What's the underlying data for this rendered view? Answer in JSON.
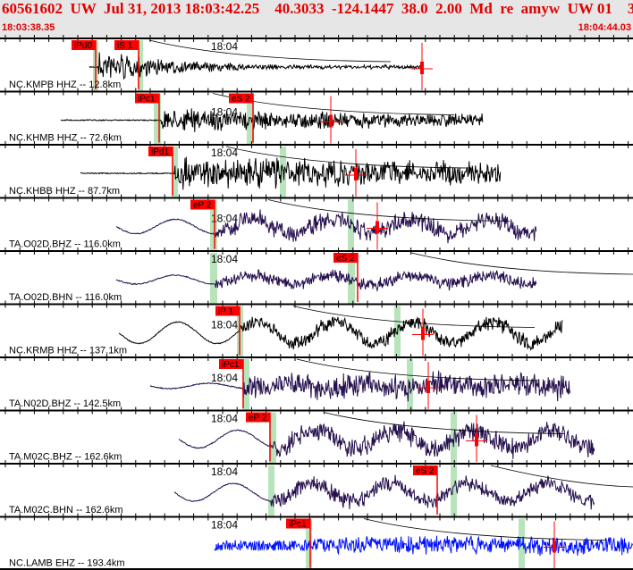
{
  "header": {
    "title": "60561602  UW  Jul 31, 2013 18:03:42.25    40.3033  -124.1447  38.0  2.00  Md  re  amyw  UW 01    3",
    "start_time": "18:03:38.35",
    "end_time": "18:04:44.03"
  },
  "time_label": "18:04",
  "colors": {
    "header_text": "#e00000",
    "pick": "#ff0000",
    "pick_window": "#b8e4bc",
    "trace_black": "#000000",
    "trace_purple": "#26104e",
    "trace_blue": "#0010ff"
  },
  "traces": [
    {
      "station": "NC.KMPB HHZ -- 12.8km",
      "color": "trace_black",
      "picks": [
        "iPd0",
        "iS 1"
      ]
    },
    {
      "station": "NC.KHMB HHZ -- 72.6km",
      "color": "trace_black",
      "picks": [
        "iPc1",
        "eS 2"
      ]
    },
    {
      "station": "NC.KHBB HHZ -- 87.7km",
      "color": "trace_black",
      "picks": [
        "iPd1"
      ]
    },
    {
      "station": "TA.O02D.BHZ -- 116.0km",
      "color": "trace_purple",
      "picks": [
        "eP 2"
      ]
    },
    {
      "station": "TA.O02D.BHN -- 116.0km",
      "color": "trace_purple",
      "picks": [
        "eS 2"
      ]
    },
    {
      "station": "NC.KRMB HHZ -- 137.1km",
      "color": "trace_black",
      "picks": [
        "iP 1"
      ]
    },
    {
      "station": "TA.N02D.BHZ -- 142.5km",
      "color": "trace_purple",
      "picks": [
        "iPc1"
      ]
    },
    {
      "station": "TA.M02C.BHZ -- 162.6km",
      "color": "trace_purple",
      "picks": [
        "eP 2"
      ]
    },
    {
      "station": "TA.M02C.BHN -- 162.6km",
      "color": "trace_purple",
      "picks": [
        "eS 2"
      ]
    },
    {
      "station": "NC.LAMB EHZ -- 193.4km",
      "color": "trace_blue",
      "picks": [
        "iPc1"
      ]
    }
  ]
}
